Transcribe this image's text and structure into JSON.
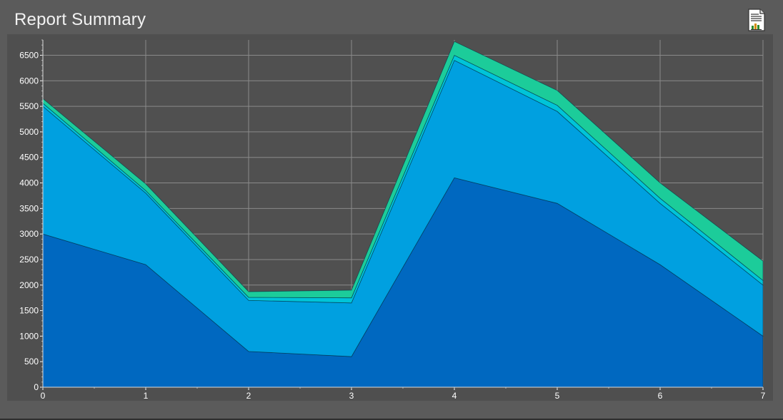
{
  "header": {
    "title": "Report Summary",
    "report_icon": "report-document-icon"
  },
  "colors": {
    "background": "#5b5b5b",
    "plot_background": "#505050",
    "grid": "#8a8a8a",
    "series": [
      "#0068c0",
      "#00a0e0",
      "#00c4d8",
      "#1ccc9a"
    ]
  },
  "chart_data": {
    "type": "area",
    "stacked": true,
    "x": [
      0,
      1,
      2,
      3,
      4,
      5,
      6,
      7
    ],
    "series": [
      {
        "values": [
          3000,
          2400,
          700,
          600,
          4100,
          3600,
          2400,
          1000
        ]
      },
      {
        "values": [
          2500,
          1400,
          1000,
          1050,
          2300,
          1800,
          1200,
          1000
        ]
      },
      {
        "values": [
          60,
          50,
          60,
          100,
          100,
          120,
          100,
          90
        ]
      },
      {
        "values": [
          90,
          130,
          110,
          150,
          270,
          290,
          300,
          380
        ]
      }
    ],
    "xlim": [
      0,
      7
    ],
    "ylim": [
      0,
      6800
    ],
    "x_ticks": [
      "0",
      "1",
      "2",
      "3",
      "4",
      "5",
      "6",
      "7"
    ],
    "y_ticks": [
      "0",
      "500",
      "1000",
      "1500",
      "2000",
      "2500",
      "3000",
      "3500",
      "4000",
      "4500",
      "5000",
      "5500",
      "6000",
      "6500"
    ],
    "grid": true,
    "legend": "none"
  }
}
